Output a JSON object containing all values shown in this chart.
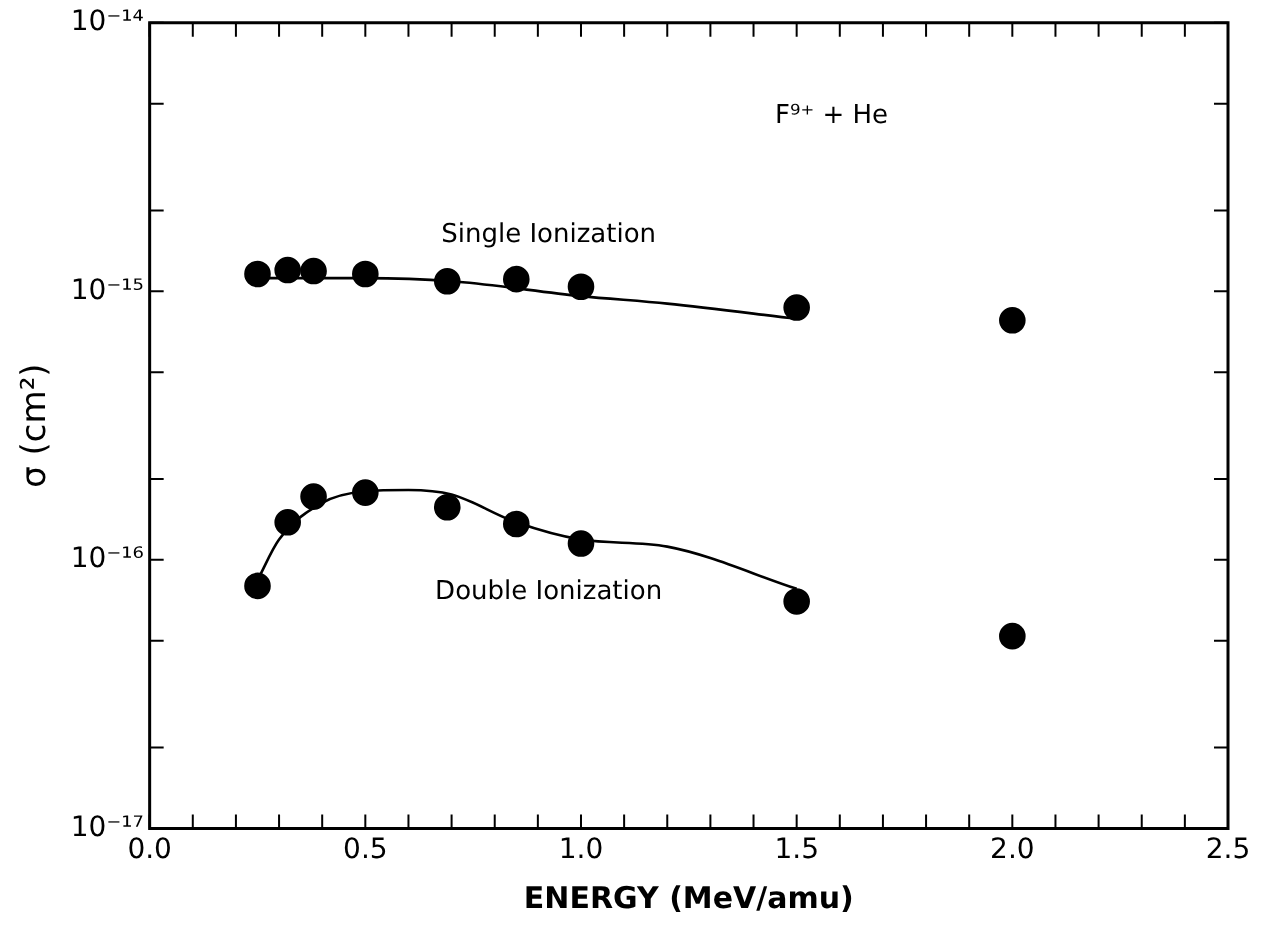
{
  "chart_data": {
    "type": "scatter",
    "xlabel": "ENERGY (MeV/amu)",
    "ylabel": "σ (cm²)",
    "log": "y",
    "xlim": [
      0,
      2.5
    ],
    "ylim": [
      1e-17,
      1e-14
    ],
    "xticks": [
      {
        "value": 0,
        "label": "0.0"
      },
      {
        "value": 0.1,
        "label": null
      },
      {
        "value": 0.2,
        "label": null
      },
      {
        "value": 0.3,
        "label": null
      },
      {
        "value": 0.4,
        "label": null
      },
      {
        "value": 0.5,
        "label": "0.5"
      },
      {
        "value": 0.6,
        "label": null
      },
      {
        "value": 0.7,
        "label": null
      },
      {
        "value": 0.8,
        "label": null
      },
      {
        "value": 0.9,
        "label": null
      },
      {
        "value": 1,
        "label": "1.0"
      },
      {
        "value": 1.1,
        "label": null
      },
      {
        "value": 1.2,
        "label": null
      },
      {
        "value": 1.3,
        "label": null
      },
      {
        "value": 1.4,
        "label": null
      },
      {
        "value": 1.5,
        "label": "1.5"
      },
      {
        "value": 1.6,
        "label": null
      },
      {
        "value": 1.7,
        "label": null
      },
      {
        "value": 1.8,
        "label": null
      },
      {
        "value": 1.9,
        "label": null
      },
      {
        "value": 2,
        "label": "2.0"
      },
      {
        "value": 2.1,
        "label": null
      },
      {
        "value": 2.2,
        "label": null
      },
      {
        "value": 2.3,
        "label": null
      },
      {
        "value": 2.4,
        "label": null
      },
      {
        "value": 2.5,
        "label": "2.5"
      }
    ],
    "yticks": [
      {
        "value": 1e-17,
        "label": "10⁻¹⁷"
      },
      {
        "value": 2e-17,
        "label": null
      },
      {
        "value": 5e-17,
        "label": null
      },
      {
        "value": 1e-16,
        "label": "10⁻¹⁶"
      },
      {
        "value": 2e-16,
        "label": null
      },
      {
        "value": 5e-16,
        "label": null
      },
      {
        "value": 1e-15,
        "label": "10⁻¹⁵"
      },
      {
        "value": 2e-15,
        "label": null
      },
      {
        "value": 5e-15,
        "label": null
      },
      {
        "value": 1e-14,
        "label": "10⁻¹⁴"
      }
    ],
    "grid": false,
    "legend": false,
    "marker": "circle",
    "annotations": [
      "F⁹⁺ + He"
    ],
    "series": [
      {
        "name": "Single Ionization",
        "color": "#000000",
        "x": [
          0.25,
          0.32,
          0.38,
          0.5,
          0.69,
          0.85,
          1.0,
          1.5,
          2.0
        ],
        "values": [
          1.16e-15,
          1.2e-15,
          1.19e-15,
          1.16e-15,
          1.09e-15,
          1.11e-15,
          1.04e-15,
          8.7e-16,
          7.8e-16
        ]
      },
      {
        "name": "Double Ionization",
        "color": "#000000",
        "x": [
          0.25,
          0.32,
          0.38,
          0.5,
          0.69,
          0.85,
          1.0,
          1.5,
          2.0
        ],
        "values": [
          8e-17,
          1.38e-16,
          1.72e-16,
          1.78e-16,
          1.57e-16,
          1.36e-16,
          1.15e-16,
          7e-17,
          5.2e-17
        ]
      },
      {
        "type": "line",
        "color": "#000000",
        "marker": "none",
        "line_style": "solid",
        "x": [
          0.25,
          0.5,
          0.7,
          1.0,
          1.2,
          1.5
        ],
        "values": [
          1.12e-15,
          1.12e-15,
          1.09e-15,
          9.6e-16,
          9e-16,
          7.9e-16
        ]
      },
      {
        "type": "line",
        "color": "#000000",
        "marker": "none",
        "line_style": "solid",
        "x": [
          0.25,
          0.3,
          0.4,
          0.5,
          0.6,
          0.7,
          0.85,
          1.0,
          1.2,
          1.5
        ],
        "values": [
          8.4e-17,
          1.19e-16,
          1.63e-16,
          1.8e-16,
          1.82e-16,
          1.75e-16,
          1.38e-16,
          1.19e-16,
          1.12e-16,
          7.8e-17
        ]
      }
    ]
  }
}
